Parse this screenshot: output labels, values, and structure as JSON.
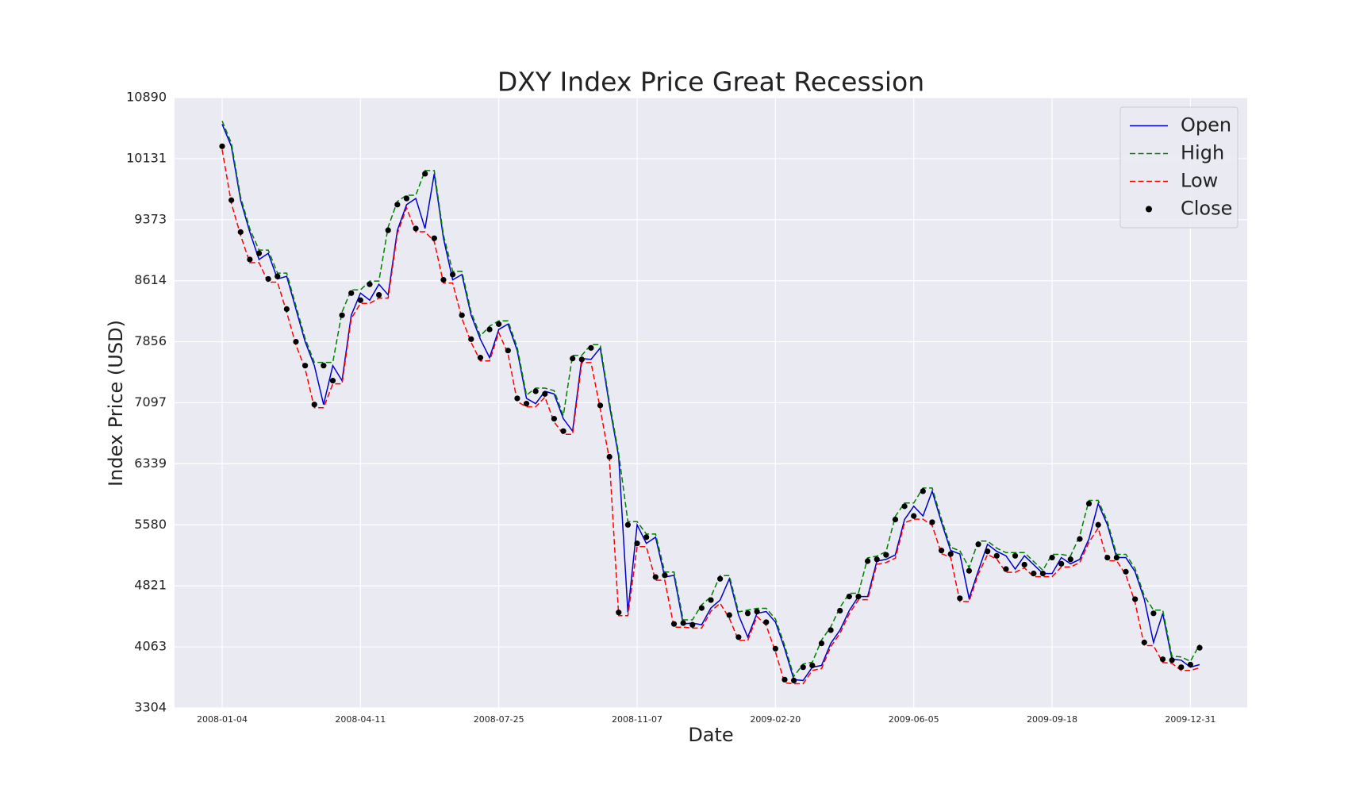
{
  "chart_data": {
    "type": "line",
    "title": "DXY Index Price Great Recession",
    "x_label": "Date",
    "y_label": "Index Price (USD)",
    "categories": [
      "2008-01-04",
      null,
      null,
      null,
      null,
      null,
      null,
      null,
      null,
      null,
      null,
      null,
      null,
      null,
      null,
      "2008-04-11",
      null,
      null,
      null,
      null,
      null,
      null,
      null,
      null,
      null,
      null,
      null,
      null,
      null,
      null,
      "2008-07-25",
      null,
      null,
      null,
      null,
      null,
      null,
      null,
      null,
      null,
      null,
      null,
      null,
      null,
      null,
      "2008-11-07",
      null,
      null,
      null,
      null,
      null,
      null,
      null,
      null,
      null,
      null,
      null,
      null,
      null,
      null,
      "2009-02-20",
      null,
      null,
      null,
      null,
      null,
      null,
      null,
      null,
      null,
      null,
      null,
      null,
      null,
      null,
      "2009-06-05",
      null,
      null,
      null,
      null,
      null,
      null,
      null,
      null,
      null,
      null,
      null,
      null,
      null,
      null,
      "2009-09-18",
      null,
      null,
      null,
      null,
      null,
      null,
      null,
      null,
      null,
      null,
      null,
      null,
      null,
      null,
      "2009-12-31",
      null
    ],
    "series": [
      {
        "name": "Open",
        "color": "#0000cc",
        "linestyle": "solid",
        "values": [
          10560,
          10285,
          9615,
          9219,
          8878,
          8955,
          8636,
          8669,
          8262,
          7856,
          7559,
          7075,
          7559,
          7372,
          8185,
          8460,
          8372,
          8570,
          8438,
          9241,
          9560,
          9637,
          9263,
          9944,
          9142,
          8625,
          8691,
          8185,
          7888,
          7658,
          8009,
          8075,
          7746,
          7152,
          7086,
          7240,
          7207,
          6899,
          6745,
          7647,
          7636,
          7779,
          7064,
          6426,
          4491,
          5580,
          5349,
          5426,
          4931,
          4953,
          4348,
          4359,
          4337,
          4546,
          4645,
          4909,
          4458,
          4184,
          4480,
          4502,
          4370,
          4041,
          3656,
          3645,
          3810,
          3832,
          4107,
          4271,
          4513,
          4689,
          4689,
          5129,
          5151,
          5206,
          5646,
          5811,
          5690,
          5998,
          5613,
          5261,
          5217,
          4667,
          5008,
          5338,
          5250,
          5195,
          5030,
          5195,
          5085,
          4975,
          4975,
          5173,
          5096,
          5151,
          5404,
          5844,
          5580,
          5173,
          5173,
          4997,
          4656,
          4118,
          4480,
          3909,
          3898,
          3810,
          3843
        ]
      },
      {
        "name": "High",
        "color": "#008000",
        "linestyle": "dashed",
        "values": [
          10600,
          10325,
          9655,
          9259,
          8995,
          8995,
          8709,
          8709,
          8302,
          7896,
          7599,
          7599,
          7599,
          8225,
          8500,
          8500,
          8610,
          8610,
          9281,
          9600,
          9677,
          9677,
          9984,
          9984,
          9182,
          8731,
          8731,
          8225,
          7928,
          8049,
          8115,
          8115,
          7786,
          7192,
          7280,
          7280,
          7247,
          6939,
          7687,
          7687,
          7819,
          7819,
          7104,
          6466,
          5620,
          5620,
          5466,
          5466,
          4993,
          4993,
          4399,
          4399,
          4586,
          4685,
          4949,
          4949,
          4498,
          4520,
          4542,
          4542,
          4410,
          4081,
          3696,
          3850,
          3872,
          4147,
          4311,
          4553,
          4729,
          4729,
          5169,
          5191,
          5246,
          5686,
          5851,
          5851,
          6038,
          6038,
          5653,
          5301,
          5257,
          5048,
          5378,
          5378,
          5290,
          5235,
          5235,
          5235,
          5125,
          5015,
          5213,
          5213,
          5191,
          5444,
          5884,
          5884,
          5620,
          5213,
          5213,
          5037,
          4696,
          4520,
          4520,
          3949,
          3938,
          3883,
          4092
        ]
      },
      {
        "name": "Low",
        "color": "#ff0000",
        "linestyle": "dashed",
        "values": [
          10245,
          9575,
          9179,
          8838,
          8838,
          8596,
          8596,
          8222,
          7816,
          7519,
          7035,
          7035,
          7332,
          7332,
          8145,
          8332,
          8332,
          8398,
          8398,
          9201,
          9520,
          9223,
          9223,
          9102,
          8585,
          8585,
          8145,
          7848,
          7618,
          7618,
          7969,
          7706,
          7112,
          7046,
          7046,
          7167,
          6859,
          6705,
          6705,
          7596,
          7596,
          7024,
          6386,
          4451,
          4451,
          5309,
          5309,
          4891,
          4891,
          4308,
          4308,
          4297,
          4297,
          4506,
          4605,
          4418,
          4144,
          4144,
          4440,
          4330,
          4001,
          3616,
          3605,
          3605,
          3770,
          3792,
          4067,
          4231,
          4473,
          4649,
          4649,
          5089,
          5111,
          5166,
          5606,
          5650,
          5650,
          5573,
          5221,
          5177,
          4627,
          4627,
          4968,
          5210,
          5155,
          4990,
          4990,
          5045,
          4935,
          4935,
          4935,
          5056,
          5056,
          5111,
          5364,
          5540,
          5133,
          5133,
          4957,
          4616,
          4078,
          4078,
          3869,
          3858,
          3770,
          3770,
          3803
        ]
      },
      {
        "name": "Close",
        "color": "#000000",
        "linestyle": "none",
        "marker": "o",
        "values": [
          10285,
          9615,
          9219,
          8878,
          8955,
          8636,
          8669,
          8262,
          7856,
          7559,
          7075,
          7559,
          7372,
          8185,
          8460,
          8372,
          8570,
          8438,
          9241,
          9560,
          9637,
          9263,
          9944,
          9142,
          8625,
          8691,
          8185,
          7888,
          7658,
          8009,
          8075,
          7746,
          7152,
          7086,
          7240,
          7207,
          6899,
          6745,
          7647,
          7636,
          7779,
          7064,
          6426,
          4491,
          5580,
          5349,
          5426,
          4931,
          4953,
          4348,
          4359,
          4337,
          4546,
          4645,
          4909,
          4458,
          4184,
          4480,
          4502,
          4370,
          4041,
          3656,
          3645,
          3810,
          3832,
          4107,
          4271,
          4513,
          4689,
          4689,
          5129,
          5151,
          5206,
          5646,
          5811,
          5690,
          5998,
          5613,
          5261,
          5217,
          4667,
          5008,
          5338,
          5250,
          5195,
          5030,
          5195,
          5085,
          4975,
          4975,
          5173,
          5096,
          5151,
          5404,
          5844,
          5580,
          5173,
          5173,
          4997,
          4656,
          4118,
          4480,
          3909,
          3898,
          3810,
          3843,
          4052
        ]
      }
    ],
    "ylim": [
      3304,
      10890
    ],
    "yticks": [
      3304,
      4063,
      4821,
      5580,
      6339,
      7097,
      7856,
      8614,
      9373,
      10131,
      10890
    ],
    "grid": true,
    "legend": "upper right"
  }
}
